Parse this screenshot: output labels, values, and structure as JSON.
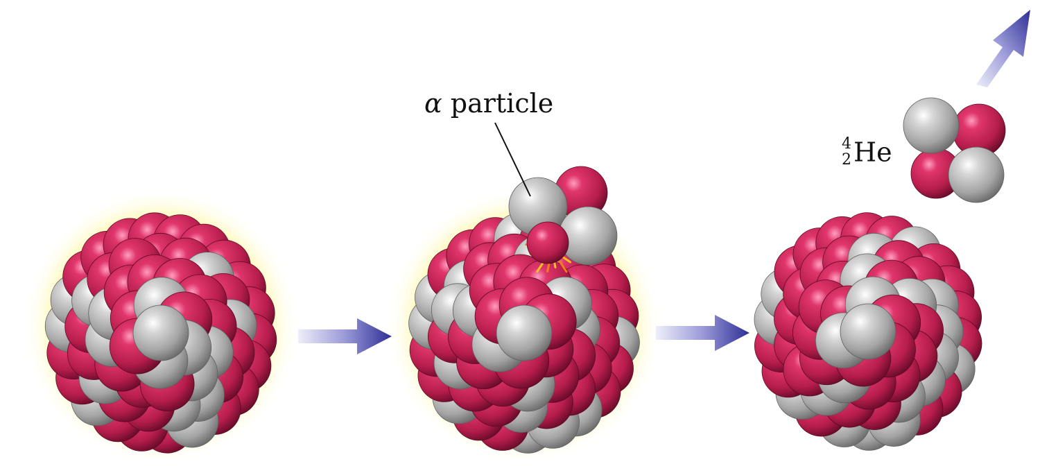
{
  "labels": {
    "alpha_symbol": "α",
    "alpha_text": "particle",
    "helium_mass_number": "4",
    "helium_atomic_number": "2",
    "helium_element": "He"
  },
  "colors": {
    "proton": "#c8285a",
    "neutron": "#b4b4b4",
    "glow": "#fff27a",
    "arrow": "#3a3a9c",
    "spark": "#f29a1c"
  }
}
